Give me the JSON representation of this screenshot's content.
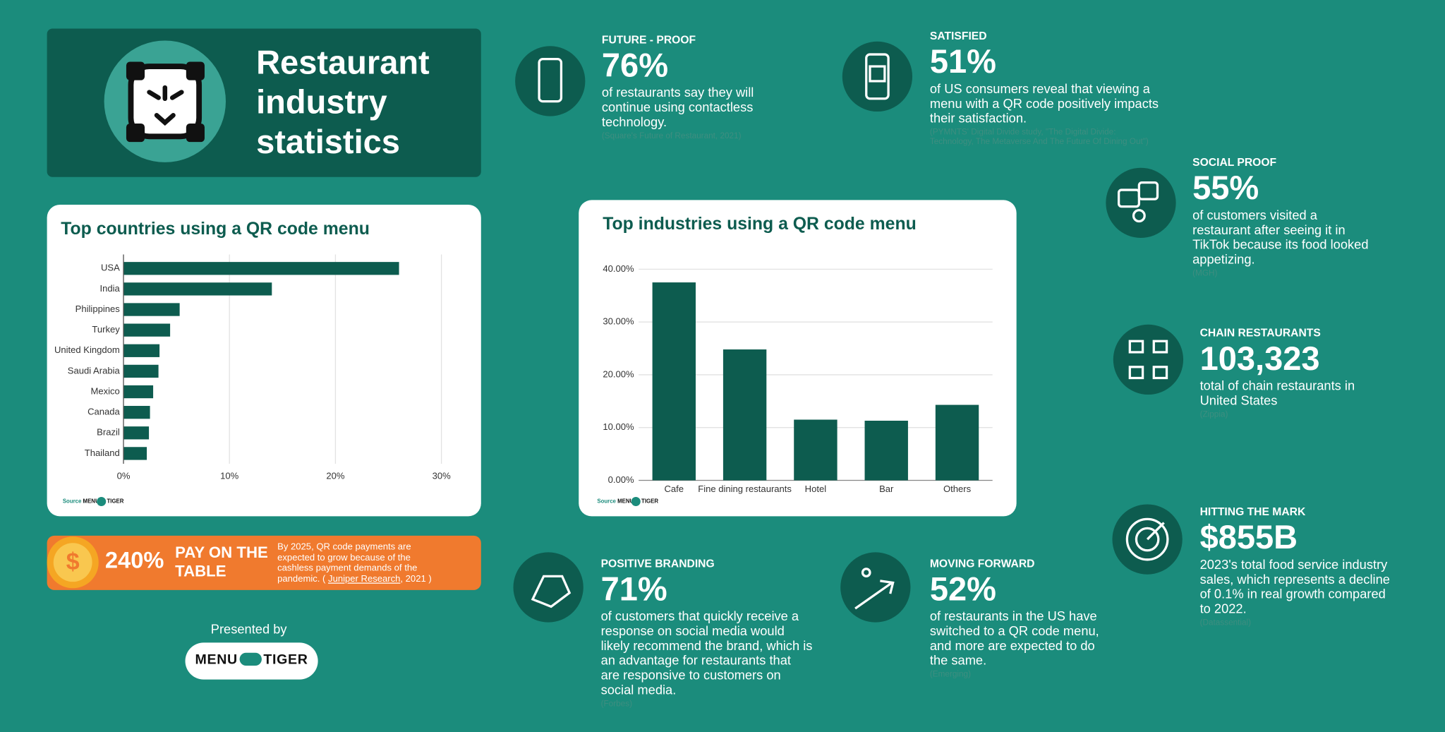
{
  "header": {
    "title": "Restaurant industry statistics"
  },
  "chart_data": [
    {
      "type": "bar",
      "orientation": "horizontal",
      "title": "Top countries using a QR code menu",
      "categories": [
        "USA",
        "India",
        "Philippines",
        "Turkey",
        "United Kingdom",
        "Saudi Arabia",
        "Mexico",
        "Canada",
        "Brazil",
        "Thailand"
      ],
      "values": [
        26,
        14,
        5.3,
        4.4,
        3.4,
        3.3,
        2.8,
        2.5,
        2.4,
        2.2
      ],
      "color": "#0d5c4f",
      "xlim": [
        0,
        30
      ],
      "xticks": [
        {
          "value": 0,
          "label": "0%"
        },
        {
          "value": 10,
          "label": "10%"
        },
        {
          "value": 20,
          "label": "20%"
        },
        {
          "value": 30,
          "label": "30%"
        }
      ],
      "grid": true,
      "source": "Source :"
    },
    {
      "type": "bar",
      "orientation": "vertical",
      "title": "Top industries using a QR code menu",
      "categories": [
        "Cafe",
        "Fine dining restaurants",
        "Hotel",
        "Bar",
        "Others"
      ],
      "values": [
        37.5,
        24.8,
        11.5,
        11.3,
        14.3
      ],
      "color": "#0d5c4f",
      "ylim": [
        0,
        40
      ],
      "yticks": [
        {
          "value": 0,
          "label": "0.00%"
        },
        {
          "value": 10,
          "label": "10.00%"
        },
        {
          "value": 20,
          "label": "20.00%"
        },
        {
          "value": 30,
          "label": "30.00%"
        },
        {
          "value": 40,
          "label": "40.00%"
        }
      ],
      "grid": true,
      "source": "Source :"
    }
  ],
  "logo": {
    "left": "MENU",
    "right": "TIGER"
  },
  "banner": {
    "value": "240%",
    "title": "PAY ON THE TABLE",
    "text": "By 2025, QR code payments are expected to grow because of the cashless payment demands of the pandemic.",
    "source_open": "(",
    "source_link": "Juniper Research",
    "source_close": ", 2021 )"
  },
  "presented_by": "Presented by",
  "stats": [
    {
      "label": "FUTURE - PROOF",
      "value": "76%",
      "text": "of restaurants say they will continue using contactless technology.",
      "source": "(Square's Future of Restaurant, 2021)"
    },
    {
      "label": "SATISFIED",
      "value": "51%",
      "text": "of US consumers reveal that viewing a menu with a QR code positively impacts their satisfaction.",
      "source": "(PYMNTS' Digital Divide study, \"The Digital Divide: Technology, The Metaverse And The Future Of Dining Out\")"
    },
    {
      "label": "SOCIAL PROOF",
      "value": "55%",
      "text": "of customers visited a restaurant after seeing it in TikTok because its food looked appetizing.",
      "source": "(MGH)"
    },
    {
      "label": "CHAIN RESTAURANTS",
      "value": "103,323",
      "text": "total of chain restaurants in United States",
      "source": "(Zippia)"
    },
    {
      "label": "HITTING THE MARK",
      "value": "$855B",
      "text": "2023's total food service industry sales, which represents a decline of 0.1% in real growth compared to 2022.",
      "source": "(Datassential)"
    },
    {
      "label": "POSITIVE BRANDING",
      "value": "71%",
      "text": "of customers that quickly receive a response on social media would likely recommend the brand, which is an advantage for restaurants that are responsive to customers on social media.",
      "source": "(Forbes)"
    },
    {
      "label": "MOVING FORWARD",
      "value": "52%",
      "text": "of restaurants in the US have switched to a QR code menu, and more are expected to do the same.",
      "source": "(Emerging)"
    }
  ]
}
